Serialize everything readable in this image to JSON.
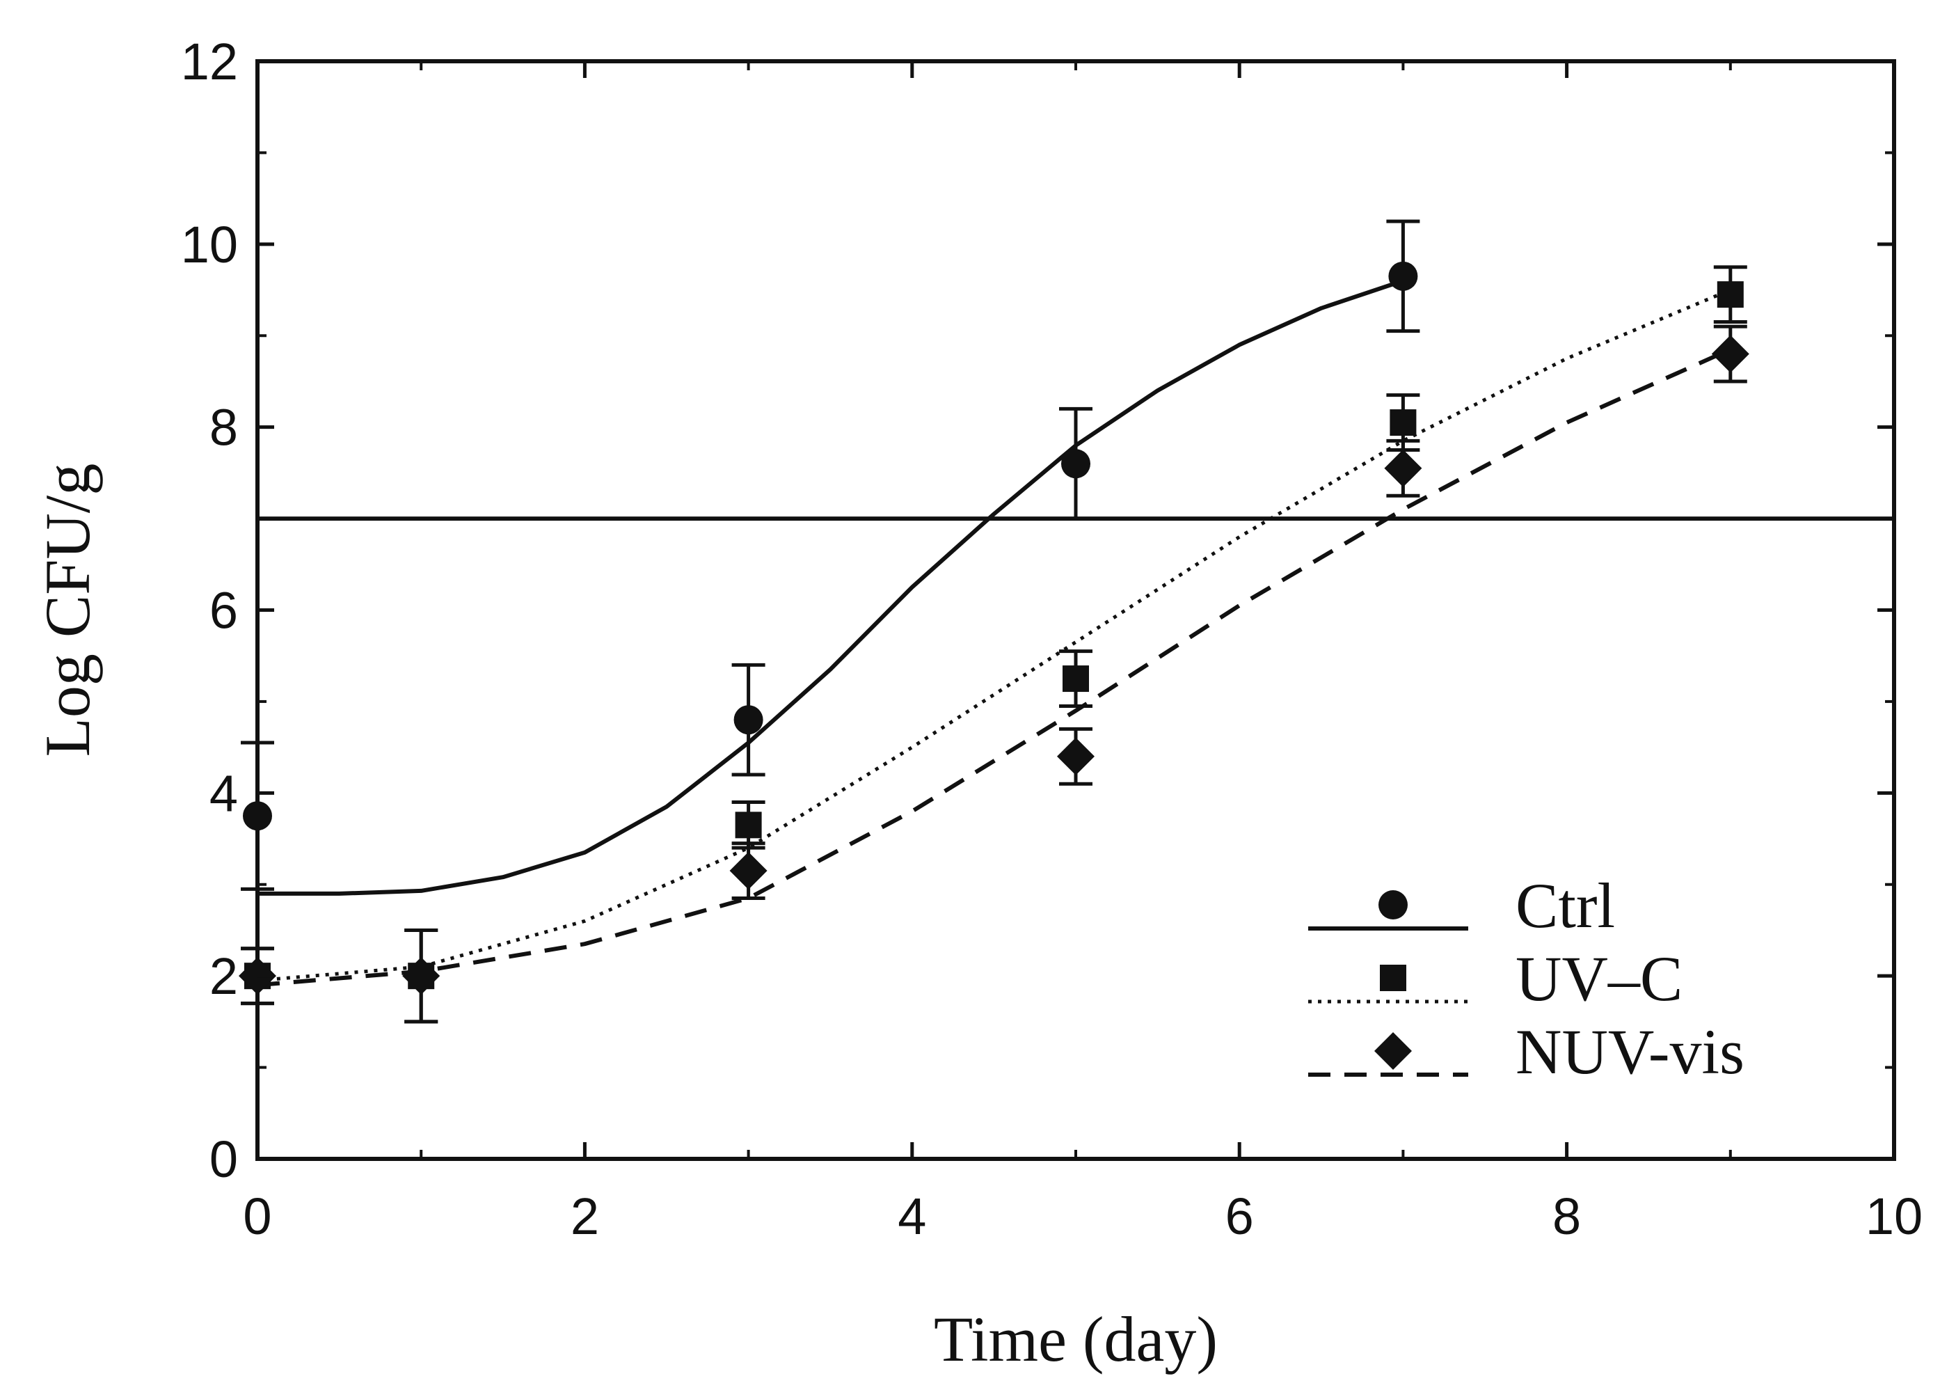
{
  "chart_data": {
    "type": "scatter",
    "title": "",
    "xlabel": "Time (day)",
    "ylabel": "Log CFU/g",
    "xlim": [
      0,
      10
    ],
    "ylim": [
      0,
      12
    ],
    "x_ticks": [
      "0",
      "2",
      "4",
      "6",
      "8",
      "10"
    ],
    "y_ticks": [
      "0",
      "2",
      "4",
      "6",
      "8",
      "10",
      "12"
    ],
    "grid": false,
    "legend_position": "bottom-right",
    "reference_line": {
      "y": 7.0
    },
    "series": [
      {
        "name": "Ctrl",
        "marker": "circle",
        "line_style": "solid",
        "x": [
          0,
          3,
          5,
          7
        ],
        "y": [
          3.75,
          4.8,
          7.6,
          9.65
        ],
        "err": [
          0.8,
          0.6,
          0.6,
          0.6
        ],
        "fit": {
          "x": [
            0,
            0.5,
            1,
            1.5,
            2,
            2.5,
            3,
            3.5,
            4,
            4.5,
            5,
            5.5,
            6,
            6.5,
            7
          ],
          "y": [
            2.9,
            2.9,
            2.93,
            3.08,
            3.35,
            3.85,
            4.55,
            5.35,
            6.25,
            7.05,
            7.8,
            8.4,
            8.9,
            9.3,
            9.6
          ]
        }
      },
      {
        "name": "UV–C",
        "marker": "square",
        "line_style": "dotted",
        "x": [
          0,
          1,
          3,
          5,
          7,
          9
        ],
        "y": [
          2.0,
          2.0,
          3.65,
          5.25,
          8.05,
          9.45
        ],
        "err": [
          0.3,
          0.5,
          0.25,
          0.3,
          0.3,
          0.3
        ],
        "fit": {
          "x": [
            0,
            1,
            2,
            3,
            4,
            5,
            6,
            7,
            8,
            9
          ],
          "y": [
            1.95,
            2.1,
            2.6,
            3.4,
            4.5,
            5.65,
            6.8,
            7.85,
            8.75,
            9.5
          ]
        }
      },
      {
        "name": "NUV-vis",
        "marker": "diamond",
        "line_style": "dashed",
        "x": [
          0,
          1,
          3,
          5,
          7,
          9
        ],
        "y": [
          2.0,
          2.0,
          3.15,
          4.4,
          7.55,
          8.8
        ],
        "err": [
          0.3,
          0.5,
          0.3,
          0.3,
          0.3,
          0.3
        ],
        "fit": {
          "x": [
            0,
            1,
            2,
            3,
            4,
            5,
            6,
            7,
            8,
            9
          ],
          "y": [
            1.9,
            2.05,
            2.35,
            2.85,
            3.8,
            4.9,
            6.05,
            7.1,
            8.05,
            8.85
          ]
        }
      }
    ]
  }
}
